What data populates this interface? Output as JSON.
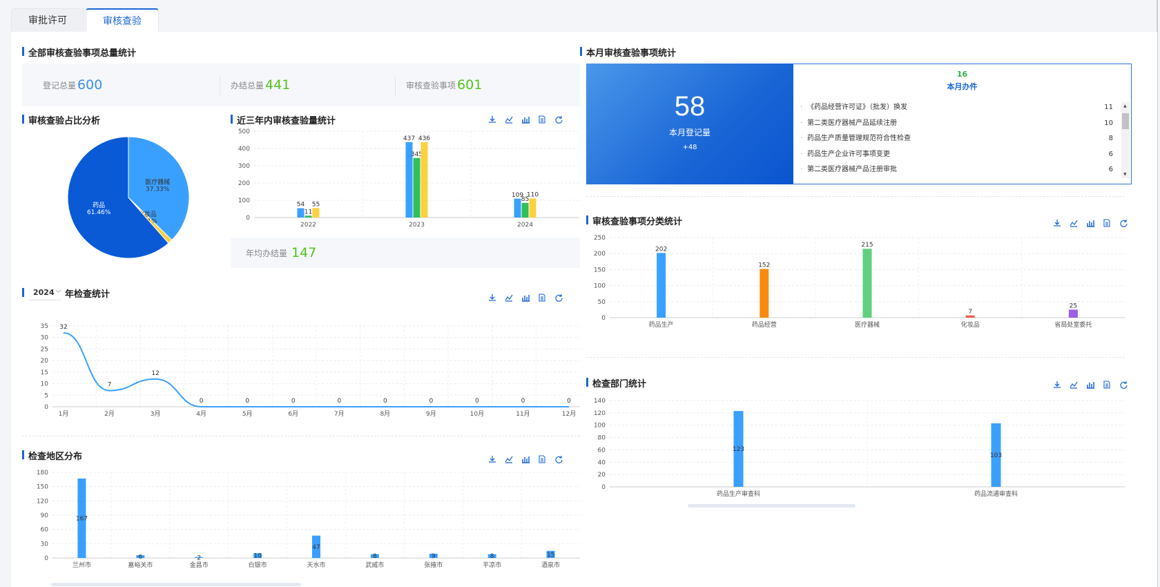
{
  "tabs": [
    {
      "label": "审批许可",
      "active": false
    },
    {
      "label": "审核查验",
      "active": true
    }
  ],
  "total_section": {
    "title": "全部审核查验事项总量统计",
    "stats": [
      {
        "label": "登记总量",
        "value": "600",
        "color": "#3a8ee6"
      },
      {
        "label": "办结总量",
        "value": "441",
        "color": "#52c41a"
      },
      {
        "label": "审核查验事项",
        "value": "601",
        "color": "#52c41a"
      }
    ]
  },
  "pie_section": {
    "title": "审核查验占比分析"
  },
  "year3_section": {
    "title": "近三年内审核查验量统计",
    "avg_label": "年均办结量",
    "avg_value": "147"
  },
  "annual_section": {
    "title": "年检查统计",
    "year": "2024"
  },
  "region_section": {
    "title": "检查地区分布"
  },
  "month_section": {
    "title": "本月审核查验事项统计",
    "big_number": "58",
    "big_label": "本月登记量",
    "big_delta": "+48",
    "done_count": "16",
    "done_label": "本月办件",
    "items": [
      {
        "name": "《药品经营许可证》（批发）换发",
        "value": "11"
      },
      {
        "name": "第二类医疗器械产品延续注册",
        "value": "10"
      },
      {
        "name": "药品生产质量管理规范符合性检查",
        "value": "8"
      },
      {
        "name": "药品生产企业许可事项变更",
        "value": "6"
      },
      {
        "name": "第二类医疗器械产品注册审批",
        "value": "6"
      }
    ]
  },
  "category_section": {
    "title": "审核查验事项分类统计"
  },
  "dept_section": {
    "title": "检查部门统计"
  },
  "toolbar_icons": [
    "download-icon",
    "line-chart-icon",
    "bar-chart-icon",
    "data-view-icon",
    "refresh-icon"
  ],
  "chart_data": [
    {
      "id": "pie",
      "type": "pie",
      "slices": [
        {
          "name": "医疗器械",
          "value": 37.33,
          "label": "37.33%",
          "color": "#3aa0ff"
        },
        {
          "name": "化妆品",
          "value": 1.21,
          "label": "1.21%",
          "color": "#f7d13a"
        },
        {
          "name": "药品",
          "value": 61.46,
          "label": "61.46%",
          "color": "#0a5ad6"
        }
      ]
    },
    {
      "id": "year3",
      "type": "bar",
      "categories": [
        "2022",
        "2023",
        "2024"
      ],
      "series": [
        {
          "values": [
            54,
            437,
            109
          ],
          "color": "#3aa0ff"
        },
        {
          "values": [
            11,
            345,
            85
          ],
          "color": "#2ec05a"
        },
        {
          "values": [
            55,
            436,
            110
          ],
          "color": "#fbd23e"
        }
      ],
      "ylim": [
        0,
        500
      ],
      "yticks": [
        0,
        100,
        200,
        300,
        400,
        500
      ]
    },
    {
      "id": "annual",
      "type": "line",
      "categories": [
        "1月",
        "2月",
        "3月",
        "4月",
        "5月",
        "6月",
        "7月",
        "8月",
        "9月",
        "10月",
        "11月",
        "12月"
      ],
      "values": [
        32,
        7,
        12,
        0,
        0,
        0,
        0,
        0,
        0,
        0,
        0,
        0
      ],
      "ylim": [
        0,
        35
      ],
      "yticks": [
        0,
        5,
        10,
        15,
        20,
        25,
        30,
        35
      ],
      "color": "#3aa0ff"
    },
    {
      "id": "region",
      "type": "bar",
      "categories": [
        "兰州市",
        "嘉峪关市",
        "金昌市",
        "白银市",
        "天水市",
        "武威市",
        "张掖市",
        "平凉市",
        "酒泉市"
      ],
      "values": [
        167,
        6,
        2,
        10,
        47,
        8,
        9,
        8,
        15
      ],
      "ylim": [
        0,
        180
      ],
      "yticks": [
        0,
        30,
        60,
        90,
        120,
        150,
        180
      ],
      "color": "#3aa0ff"
    },
    {
      "id": "category",
      "type": "bar",
      "categories": [
        "药品生产",
        "药品经营",
        "医疗器械",
        "化妆品",
        "省局处室委托"
      ],
      "values": [
        202,
        152,
        215,
        7,
        25
      ],
      "colors": [
        "#3aa0ff",
        "#f98a10",
        "#5fd07f",
        "#f15b4f",
        "#9c5ee6"
      ],
      "ylim": [
        0,
        250
      ],
      "yticks": [
        0,
        50,
        100,
        150,
        200,
        250
      ]
    },
    {
      "id": "dept",
      "type": "bar",
      "categories": [
        "药品生产审查科",
        "药品流通审查科"
      ],
      "values": [
        123,
        103
      ],
      "ylim": [
        0,
        140
      ],
      "yticks": [
        0,
        20,
        40,
        60,
        80,
        100,
        120,
        140
      ],
      "color": "#3aa0ff"
    }
  ]
}
